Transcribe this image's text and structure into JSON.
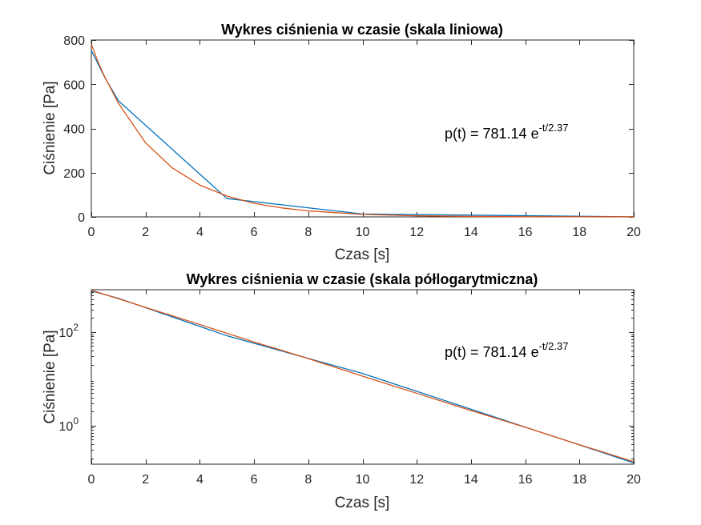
{
  "chart_data": [
    {
      "type": "line",
      "title": "Wykres ciśnienia w czasie (skala liniowa)",
      "xlabel": "Czas [s]",
      "ylabel": "Ciśnienie [Pa]",
      "xlim": [
        0,
        20
      ],
      "ylim": [
        0,
        800
      ],
      "yscale": "linear",
      "grid": false,
      "xticks": [
        0,
        2,
        4,
        6,
        8,
        10,
        12,
        14,
        16,
        18,
        20
      ],
      "xtick_labels": [
        "0",
        "2",
        "4",
        "6",
        "8",
        "10",
        "12",
        "14",
        "16",
        "18",
        "20"
      ],
      "yticks": [
        0,
        200,
        400,
        600,
        800
      ],
      "ytick_labels": [
        "0",
        "200",
        "400",
        "600",
        "800"
      ],
      "annotation": {
        "text_base": "p(t) = 781.14 e",
        "text_exponent": "-t/2.37"
      },
      "series": [
        {
          "color": "#0072BD",
          "x": [
            0,
            0.5,
            1,
            5,
            10,
            20
          ],
          "y": [
            753,
            630,
            525,
            83,
            13,
            0.16
          ]
        },
        {
          "color": "#D95319",
          "x": [
            0,
            0.25,
            0.5,
            1,
            2,
            3,
            4,
            5,
            6,
            7,
            8,
            10,
            12,
            14,
            16,
            18,
            20
          ],
          "y": [
            781.14,
            700,
            632,
            514,
            335,
            220,
            144,
            94,
            61,
            41,
            27,
            11.4,
            4.9,
            2.1,
            0.92,
            0.39,
            0.17
          ]
        }
      ]
    },
    {
      "type": "line",
      "title": "Wykres ciśnienia w czasie (skala półlogarytmiczna)",
      "xlabel": "Czas [s]",
      "ylabel": "Ciśnienie [Pa]",
      "xlim": [
        0,
        20
      ],
      "ylim": [
        0.15,
        800
      ],
      "yscale": "log",
      "grid": false,
      "xticks": [
        0,
        2,
        4,
        6,
        8,
        10,
        12,
        14,
        16,
        18,
        20
      ],
      "xtick_labels": [
        "0",
        "2",
        "4",
        "6",
        "8",
        "10",
        "12",
        "14",
        "16",
        "18",
        "20"
      ],
      "yticks": [
        1,
        100
      ],
      "ytick_labels": [
        {
          "base": "10",
          "exp": "0"
        },
        {
          "base": "10",
          "exp": "2"
        }
      ],
      "annotation": {
        "text_base": "p(t) = 781.14 e",
        "text_exponent": "-t/2.37"
      },
      "series": [
        {
          "color": "#0072BD",
          "x": [
            0,
            0.5,
            1,
            5,
            10,
            20
          ],
          "y": [
            753,
            630,
            525,
            83,
            13,
            0.16
          ]
        },
        {
          "color": "#D95319",
          "x": [
            0,
            0.25,
            0.5,
            1,
            2,
            3,
            4,
            5,
            6,
            7,
            8,
            10,
            12,
            14,
            16,
            18,
            20
          ],
          "y": [
            781.14,
            700,
            632,
            514,
            335,
            220,
            144,
            94,
            61,
            41,
            27,
            11.4,
            4.9,
            2.1,
            0.92,
            0.39,
            0.17
          ]
        }
      ]
    }
  ]
}
